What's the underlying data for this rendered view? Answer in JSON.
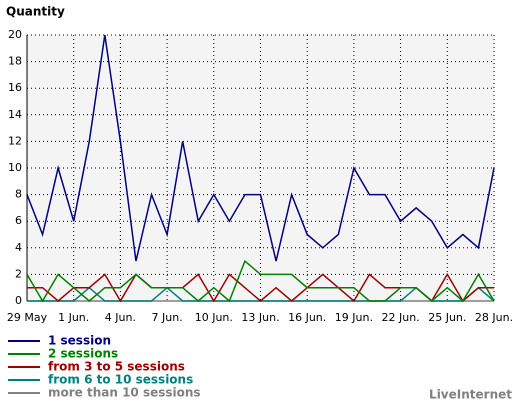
{
  "chart_data": {
    "type": "line",
    "y_label": "Quantity",
    "categories": [
      "29 May",
      null,
      null,
      "1 Jun.",
      null,
      null,
      "4 Jun.",
      null,
      null,
      "7 Jun.",
      null,
      null,
      "10 Jun.",
      null,
      null,
      "13 Jun.",
      null,
      null,
      "16 Jun.",
      null,
      null,
      "19 Jun.",
      null,
      null,
      "22 Jun.",
      null,
      null,
      "25 Jun.",
      null,
      null,
      "28 Jun."
    ],
    "series": [
      {
        "name": "1 session",
        "color": "#000080",
        "values": [
          8,
          5,
          10,
          6,
          12,
          20,
          12,
          3,
          8,
          5,
          12,
          6,
          8,
          6,
          8,
          8,
          3,
          8,
          5,
          4,
          5,
          10,
          8,
          8,
          6,
          7,
          6,
          4,
          5,
          4,
          10
        ]
      },
      {
        "name": "2 sessions",
        "color": "#008000",
        "values": [
          2,
          0,
          2,
          1,
          0,
          1,
          1,
          2,
          1,
          1,
          1,
          0,
          1,
          0,
          3,
          2,
          2,
          2,
          1,
          1,
          1,
          1,
          0,
          0,
          1,
          1,
          0,
          1,
          0,
          2,
          0
        ]
      },
      {
        "name": "from 3 to 5 sessions",
        "color": "#a00000",
        "values": [
          1,
          1,
          0,
          1,
          1,
          2,
          0,
          2,
          1,
          1,
          1,
          2,
          0,
          2,
          1,
          0,
          1,
          0,
          1,
          2,
          1,
          0,
          2,
          1,
          1,
          1,
          0,
          2,
          0,
          1,
          1
        ]
      },
      {
        "name": "from 6 to 10 sessions",
        "color": "#008080",
        "values": [
          0,
          0,
          0,
          0,
          1,
          0,
          0,
          0,
          0,
          1,
          0,
          0,
          0,
          0,
          0,
          0,
          0,
          0,
          0,
          0,
          0,
          0,
          0,
          0,
          0,
          1,
          0,
          0,
          0,
          1,
          0
        ]
      },
      {
        "name": "more than 10 sessions",
        "color": "#808080",
        "values": [
          0,
          0,
          0,
          0,
          0,
          0,
          0,
          0,
          0,
          0,
          0,
          0,
          0,
          0,
          0,
          0,
          0,
          0,
          0,
          0,
          0,
          0,
          0,
          0,
          0,
          0,
          0,
          0,
          0,
          0,
          0
        ]
      }
    ],
    "ylim": [
      0,
      20
    ],
    "yticks": [
      0,
      2,
      4,
      6,
      8,
      10,
      12,
      14,
      16,
      18,
      20
    ],
    "grid": true,
    "watermark": "LiveInternet"
  }
}
